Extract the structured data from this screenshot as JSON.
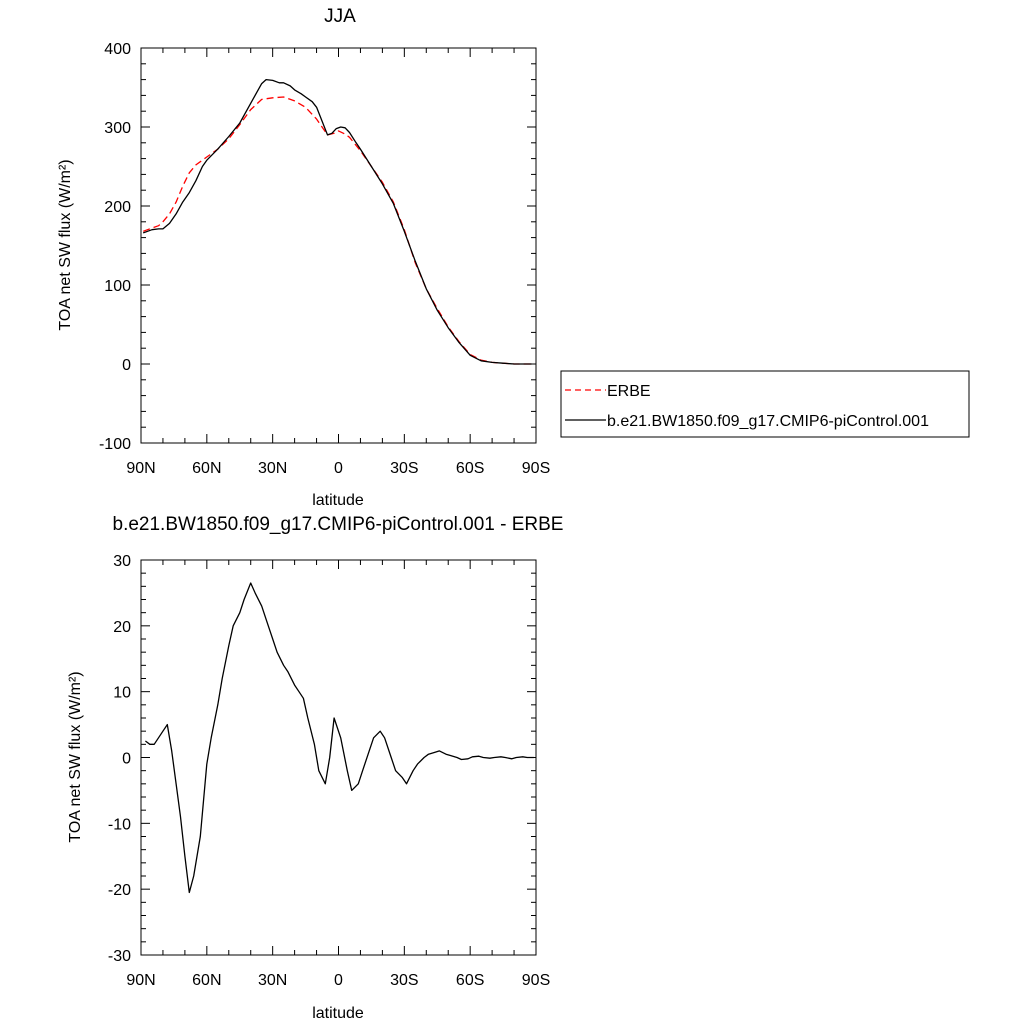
{
  "chart_data": [
    {
      "type": "line",
      "title": "JJA",
      "xlabel": "latitude",
      "ylabel": "TOA net SW flux (W/m²)",
      "xlim": [
        90,
        -90
      ],
      "ylim": [
        -100,
        400
      ],
      "xticks": [
        90,
        60,
        30,
        0,
        -30,
        -60,
        -90
      ],
      "xtick_labels": [
        "90N",
        "60N",
        "30N",
        "0",
        "30S",
        "60S",
        "90S"
      ],
      "yticks": [
        -100,
        0,
        100,
        200,
        300,
        400
      ],
      "ytick_labels": [
        "-100",
        "0",
        "100",
        "200",
        "300",
        "400"
      ],
      "grid": false,
      "legend": "right",
      "series": [
        {
          "name": "ERBE",
          "color": "#ff0000",
          "dash": "dashed",
          "x": [
            89,
            85,
            82,
            80,
            77,
            74,
            71,
            68,
            65,
            60,
            55,
            50,
            45,
            40,
            35,
            30,
            25,
            20,
            15,
            10,
            5,
            2,
            0,
            -3,
            -5,
            -10,
            -15,
            -20,
            -25,
            -30,
            -35,
            -40,
            -45,
            -50,
            -55,
            -60,
            -65,
            -70,
            -75,
            -80,
            -85,
            -88
          ],
          "y": [
            168,
            172,
            175,
            180,
            190,
            205,
            225,
            242,
            252,
            262,
            272,
            285,
            303,
            322,
            335,
            337,
            338,
            333,
            325,
            310,
            290,
            292,
            295,
            291,
            287,
            270,
            250,
            230,
            205,
            170,
            128,
            95,
            70,
            47,
            28,
            12,
            5,
            2,
            1,
            0,
            0,
            0
          ]
        },
        {
          "name": "b.e21.BW1850.f09_g17.CMIP6-piControl.001",
          "color": "#000000",
          "dash": "solid",
          "x": [
            89,
            87,
            85,
            82,
            80,
            77,
            74,
            71,
            68,
            65,
            62,
            60,
            55,
            50,
            45,
            40,
            37,
            35,
            33,
            30,
            27,
            25,
            22,
            20,
            17,
            15,
            12,
            10,
            5,
            3,
            1,
            -1,
            -3,
            -5,
            -8,
            -10,
            -15,
            -20,
            -25,
            -30,
            -35,
            -40,
            -45,
            -50,
            -55,
            -60,
            -65,
            -70,
            -75,
            -80,
            -85,
            -88
          ],
          "y": [
            166,
            168,
            170,
            171,
            171,
            178,
            190,
            205,
            217,
            232,
            250,
            258,
            272,
            288,
            305,
            330,
            345,
            355,
            360,
            359,
            356,
            356,
            352,
            347,
            342,
            338,
            332,
            325,
            290,
            292,
            298,
            300,
            299,
            293,
            280,
            272,
            250,
            228,
            203,
            168,
            130,
            95,
            68,
            46,
            27,
            11,
            4,
            2,
            1,
            0,
            0,
            0
          ]
        }
      ]
    },
    {
      "type": "line",
      "title": "b.e21.BW1850.f09_g17.CMIP6-piControl.001 - ERBE",
      "xlabel": "latitude",
      "ylabel": "TOA net SW flux (W/m²)",
      "xlim": [
        90,
        -90
      ],
      "ylim": [
        -30,
        30
      ],
      "xticks": [
        90,
        60,
        30,
        0,
        -30,
        -60,
        -90
      ],
      "xtick_labels": [
        "90N",
        "60N",
        "30N",
        "0",
        "30S",
        "60S",
        "90S"
      ],
      "yticks": [
        -30,
        -20,
        -10,
        0,
        10,
        20,
        30
      ],
      "ytick_labels": [
        "-30",
        "-20",
        "-10",
        "0",
        "10",
        "20",
        "30"
      ],
      "grid": false,
      "series": [
        {
          "name": "",
          "color": "#000000",
          "dash": "solid",
          "x": [
            88,
            86,
            84,
            80,
            78,
            76,
            74,
            72,
            70,
            68,
            66,
            63,
            60,
            58,
            55,
            53,
            50,
            48,
            45,
            43,
            40,
            38,
            35,
            33,
            30,
            28,
            25,
            23,
            20,
            18,
            16,
            14,
            11,
            9,
            6,
            4,
            2,
            -1,
            -4,
            -6,
            -9,
            -11,
            -14,
            -16,
            -19,
            -21,
            -24,
            -26,
            -29,
            -31,
            -34,
            -36,
            -39,
            -41,
            -44,
            -46,
            -49,
            -51,
            -54,
            -56,
            -59,
            -61,
            -64,
            -66,
            -69,
            -71,
            -74,
            -76,
            -79,
            -81,
            -84,
            -86,
            -89
          ],
          "y": [
            2.5,
            2,
            2,
            4,
            5,
            1,
            -4,
            -9,
            -15,
            -20.5,
            -18,
            -12,
            -1,
            3,
            8,
            12,
            17,
            20,
            22,
            24,
            26.5,
            25,
            23,
            21,
            18,
            16,
            14,
            13,
            11,
            10,
            9,
            6,
            2,
            -2,
            -4,
            0,
            6,
            3,
            -2,
            -5,
            -4,
            -2,
            1,
            3,
            4,
            3,
            0,
            -2,
            -3,
            -4,
            -2,
            -1,
            0,
            0.5,
            0.8,
            1,
            0.5,
            0.3,
            0,
            -0.3,
            -0.2,
            0.1,
            0.2,
            0,
            -0.1,
            0,
            0.1,
            0,
            -0.2,
            0,
            0.1,
            0,
            0
          ]
        }
      ]
    }
  ]
}
